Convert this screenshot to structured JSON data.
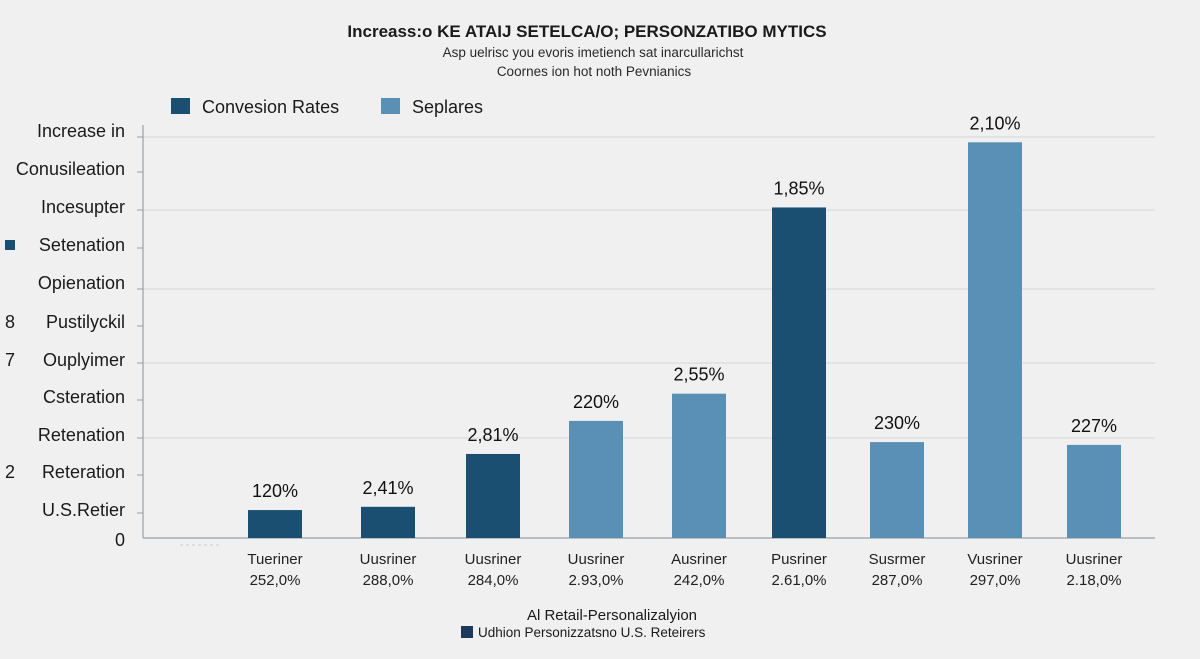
{
  "chart_data": {
    "type": "bar",
    "title": "Increass:o KE ATAIJ SETELCA/O; PERSONZATIBO MYTICS",
    "subtitle_lines": [
      "Asp uelrisc you evoris imetiench sat inarcullarichst",
      "Coornes ion hot noth Pevnianics"
    ],
    "legend": [
      {
        "name": "Convesion Rates",
        "color": "#1b4f72"
      },
      {
        "name": "Seplares",
        "color": "#5b90b6"
      }
    ],
    "y_labels": [
      {
        "text": "Increase in"
      },
      {
        "text": "Conusileation"
      },
      {
        "text": "Incesupter"
      },
      {
        "text": "Setenation",
        "marker": "#1b4f72"
      },
      {
        "text": "Opienation"
      },
      {
        "text": "Pustilyckil",
        "prefix": "8"
      },
      {
        "text": "Ouplyimer",
        "prefix": "7"
      },
      {
        "text": "Csteration"
      },
      {
        "text": "Retenation"
      },
      {
        "text": "Reteration",
        "prefix": "2"
      },
      {
        "text": "U.S.Retier"
      },
      {
        "text": "0"
      }
    ],
    "bars": [
      {
        "value": 1.2,
        "label": "120%",
        "series": 0
      },
      {
        "value": 1.34,
        "label": "2,41%",
        "series": 0
      },
      {
        "value": 3.61,
        "label": "2,81%",
        "series": 0
      },
      {
        "value": 5.03,
        "label": "220%",
        "series": 1
      },
      {
        "value": 6.2,
        "label": "2,55%",
        "series": 1
      },
      {
        "value": 14.2,
        "label": "1,85%",
        "series": 0
      },
      {
        "value": 4.12,
        "label": "230%",
        "series": 1
      },
      {
        "value": 17.0,
        "label": "2,10%",
        "series": 1
      },
      {
        "value": 4.0,
        "label": "227%",
        "series": 1
      }
    ],
    "categories": [
      {
        "line1": "Tueriner",
        "line2": "252,0%"
      },
      {
        "line1": "Uusriner",
        "line2": "288,0%"
      },
      {
        "line1": "Uusriner",
        "line2": "284,0%"
      },
      {
        "line1": "Uusriner",
        "line2": "2.93,0%"
      },
      {
        "line1": "Ausriner",
        "line2": "242,0%"
      },
      {
        "line1": "Pusriner",
        "line2": "2.61,0%"
      },
      {
        "line1": "Susrmer",
        "line2": "287,0%"
      },
      {
        "line1": "Vusriner",
        "line2": "297,0%"
      },
      {
        "line1": "Uusriner",
        "line2": "2.18,0%"
      }
    ],
    "ylim": [
      0,
      18
    ],
    "grid": true,
    "legend_position": "top-left",
    "xlabel": "Al Retail-Personalizalyion",
    "footer_legend": {
      "name": "Udhion Personizzatsno U.S. Reteirers",
      "color": "#1b3a5c"
    }
  }
}
